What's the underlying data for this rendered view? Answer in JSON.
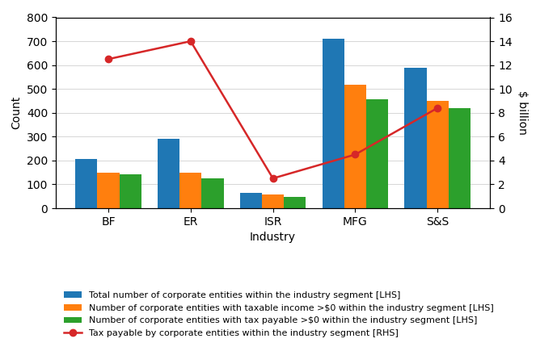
{
  "chart_data": {
    "type": "bar",
    "categories": [
      "BF",
      "ER",
      "ISR",
      "MFG",
      "S&S"
    ],
    "xlabel": "Industry",
    "ylabel": "Count",
    "y2label": "$ billion",
    "ylim": [
      0,
      800
    ],
    "yticks": [
      0,
      100,
      200,
      300,
      400,
      500,
      600,
      700,
      800
    ],
    "y2lim": [
      0,
      16
    ],
    "y2ticks": [
      0,
      2,
      4,
      6,
      8,
      10,
      12,
      14,
      16
    ],
    "grid": true,
    "legend": "lower center",
    "series": [
      {
        "name": "Total number of corporate entities within the industry segment [LHS]",
        "type": "bar",
        "values": [
          207,
          292,
          65,
          710,
          588
        ]
      },
      {
        "name": "Number of corporate entities with taxable income >$0 within the industry segment [LHS]",
        "type": "bar",
        "values": [
          150,
          148,
          57,
          518,
          450
        ]
      },
      {
        "name": "Number of corporate entities with tax payable >$0 within the industry segment [LHS]",
        "type": "bar",
        "values": [
          143,
          124,
          48,
          458,
          418
        ]
      },
      {
        "name": "Tax payable by corporate entities within the industry segment [RHS]",
        "type": "line",
        "axis": "y2",
        "marker": "o",
        "values": [
          12.5,
          14.0,
          2.5,
          4.5,
          8.4
        ]
      }
    ]
  }
}
